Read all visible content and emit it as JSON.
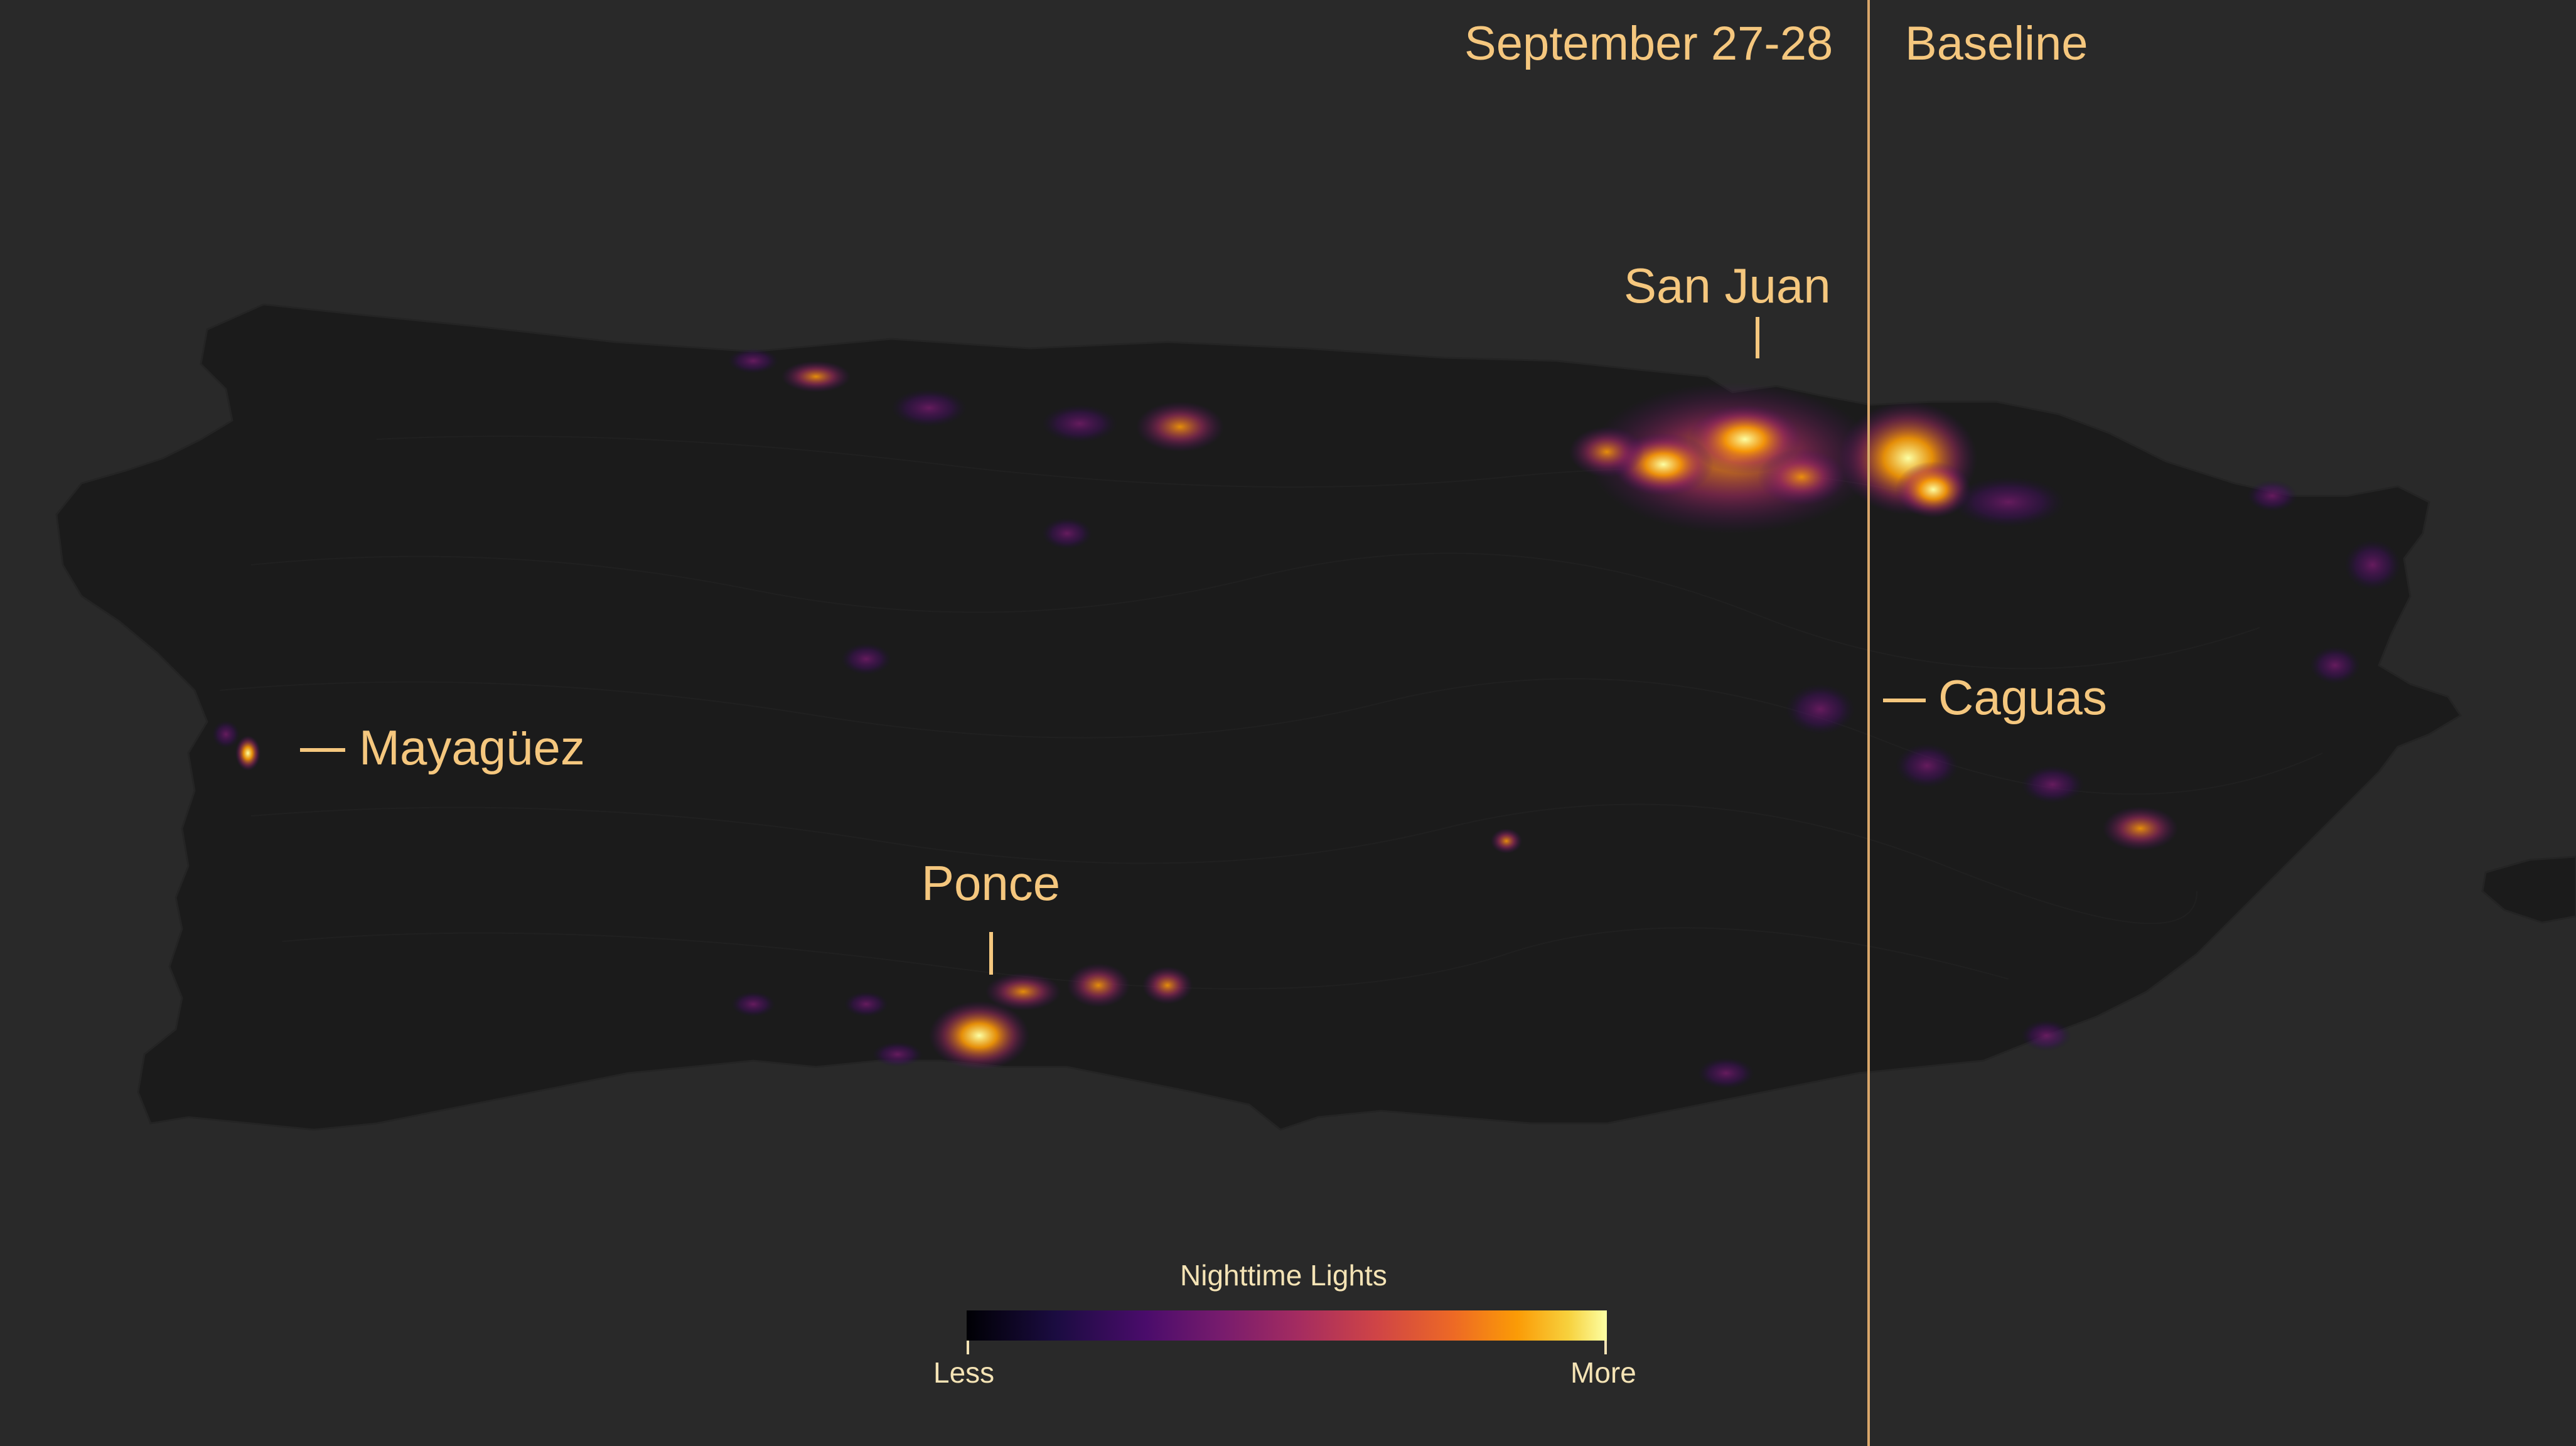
{
  "panels": {
    "left_title": "September 27-28",
    "right_title": "Baseline"
  },
  "cities": {
    "san_juan": "San Juan",
    "mayaguez": "Mayagüez",
    "ponce": "Ponce",
    "caguas": "Caguas"
  },
  "legend": {
    "title": "Nighttime Lights",
    "low_label": "Less",
    "high_label": "More",
    "colors": [
      "#000004",
      "#1b0c41",
      "#4a0c6b",
      "#781c6d",
      "#a52c60",
      "#cf4446",
      "#ed6925",
      "#fb9b06",
      "#f7d13d",
      "#fcffa4"
    ]
  },
  "colors": {
    "background": "#292929",
    "land": "#1a1a1a",
    "label": "#f5c77e",
    "divider": "#d9a66a"
  }
}
